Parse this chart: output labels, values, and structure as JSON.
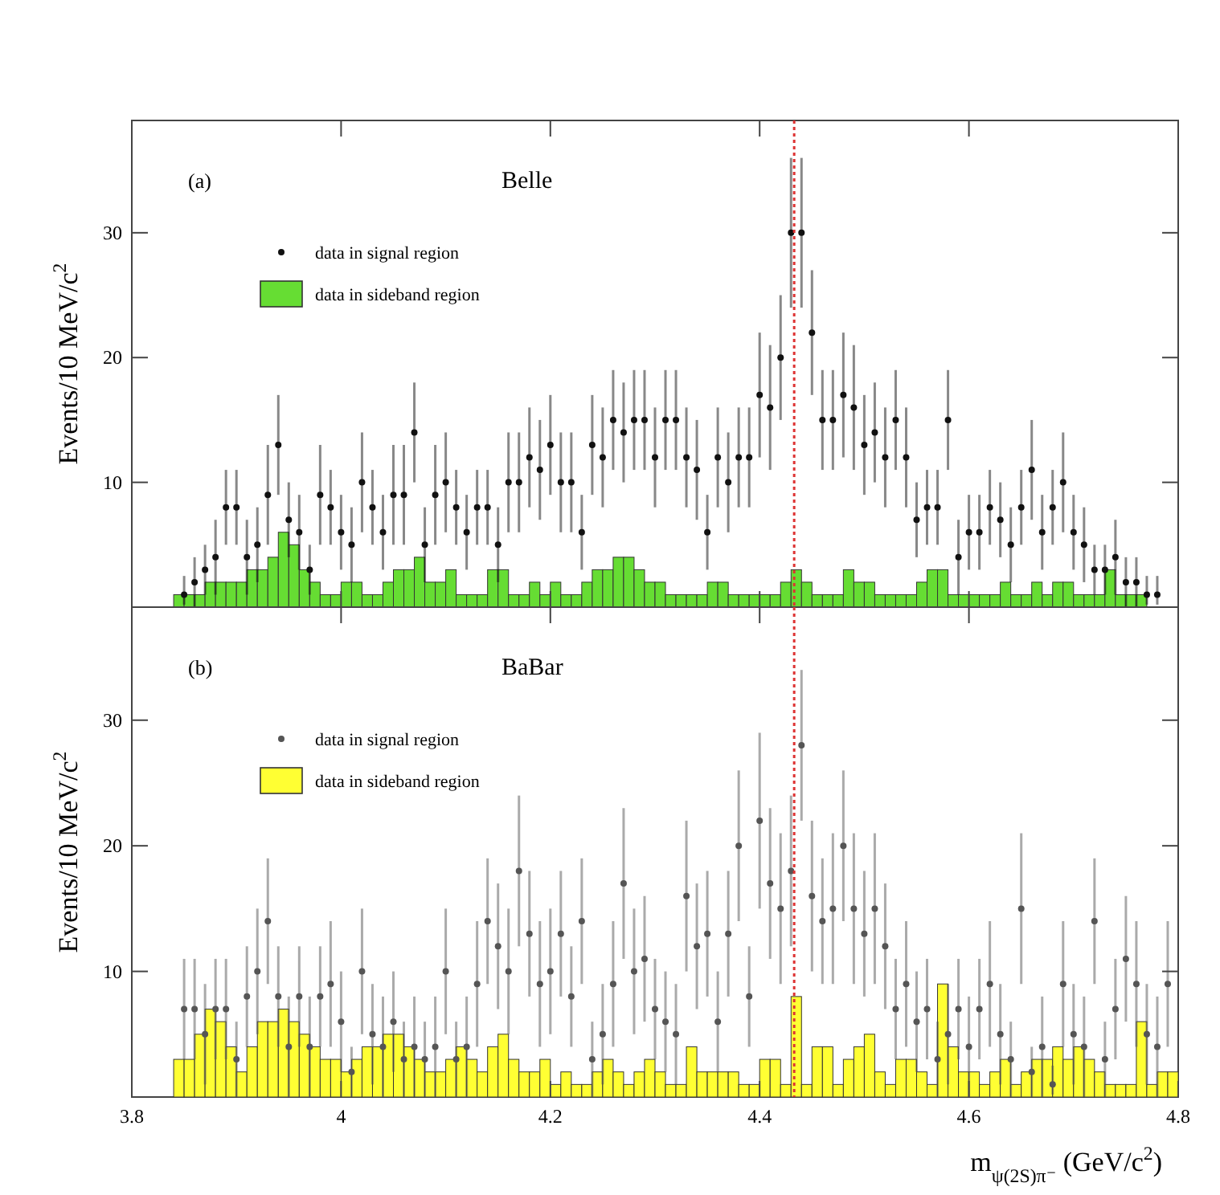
{
  "chart_data": [
    {
      "type": "scatter",
      "ylabel": "Events/10 MeV/c$^{2}$",
      "annotations": [
        "(a)",
        "Belle"
      ],
      "xlim": [
        3.8,
        4.8
      ],
      "xticks": [
        3.8,
        4,
        4.2,
        4.4,
        4.6,
        4.8
      ],
      "ylim": [
        0,
        39
      ],
      "yticks": [
        10,
        20,
        30
      ],
      "tick_labels": "y",
      "legend": "top left",
      "grid": false,
      "marker": "circle",
      "ref_lines": [
        {
          "axis": "x",
          "value": 4.433,
          "color": "#dd3333",
          "line_style": "dotted"
        }
      ],
      "series": [
        {
          "name": "data in signal region",
          "color": "#111111",
          "x": [
            3.85,
            3.86,
            3.87,
            3.88,
            3.89,
            3.9,
            3.91,
            3.92,
            3.93,
            3.94,
            3.95,
            3.96,
            3.97,
            3.98,
            3.99,
            4.0,
            4.01,
            4.02,
            4.03,
            4.04,
            4.05,
            4.06,
            4.07,
            4.08,
            4.09,
            4.1,
            4.11,
            4.12,
            4.13,
            4.14,
            4.15,
            4.16,
            4.17,
            4.18,
            4.19,
            4.2,
            4.21,
            4.22,
            4.23,
            4.24,
            4.25,
            4.26,
            4.27,
            4.28,
            4.29,
            4.3,
            4.31,
            4.32,
            4.33,
            4.34,
            4.35,
            4.36,
            4.37,
            4.38,
            4.39,
            4.4,
            4.41,
            4.42,
            4.43,
            4.44,
            4.45,
            4.46,
            4.47,
            4.48,
            4.49,
            4.5,
            4.51,
            4.52,
            4.53,
            4.54,
            4.55,
            4.56,
            4.57,
            4.58,
            4.59,
            4.6,
            4.61,
            4.62,
            4.63,
            4.64,
            4.65,
            4.66,
            4.67,
            4.68,
            4.69,
            4.7,
            4.71,
            4.72,
            4.73,
            4.74,
            4.75,
            4.76,
            4.77,
            4.78
          ],
          "values": [
            1,
            2,
            3,
            4,
            8,
            8,
            4,
            5,
            9,
            13,
            7,
            6,
            3,
            9,
            8,
            6,
            5,
            10,
            8,
            6,
            9,
            9,
            14,
            5,
            9,
            10,
            8,
            6,
            8,
            8,
            5,
            10,
            10,
            12,
            11,
            13,
            10,
            10,
            6,
            13,
            12,
            15,
            14,
            15,
            15,
            12,
            15,
            15,
            12,
            11,
            6,
            12,
            10,
            12,
            12,
            17,
            16,
            20,
            30,
            30,
            22,
            15,
            15,
            17,
            16,
            13,
            14,
            12,
            15,
            12,
            7,
            8,
            8,
            15,
            4,
            6,
            6,
            8,
            7,
            5,
            8,
            11,
            6,
            8,
            10,
            6,
            5,
            3,
            3,
            4,
            2,
            2,
            1,
            1
          ],
          "errors": [
            [
              0.2,
              2.5
            ],
            2,
            2,
            3,
            3,
            3,
            3,
            3,
            4,
            4,
            3,
            3,
            2,
            4,
            3,
            3,
            3,
            4,
            3,
            3,
            4,
            4,
            4,
            3,
            4,
            4,
            3,
            3,
            3,
            3,
            3,
            4,
            4,
            4,
            4,
            4,
            4,
            4,
            3,
            4,
            4,
            4,
            4,
            4,
            4,
            4,
            4,
            4,
            4,
            4,
            3,
            4,
            4,
            4,
            4,
            5,
            5,
            5,
            6,
            6,
            5,
            4,
            4,
            5,
            5,
            4,
            4,
            4,
            4,
            4,
            3,
            3,
            3,
            4,
            3,
            3,
            3,
            3,
            3,
            3,
            3,
            4,
            3,
            3,
            4,
            3,
            3,
            2,
            2,
            3,
            2,
            2,
            [
              0.2,
              2.5
            ],
            [
              0.2,
              2.5
            ]
          ]
        },
        {
          "name": "data in sideband region",
          "type": "histogram",
          "color": "#66dd33",
          "bins": [
            3.84,
            3.85,
            3.86,
            3.87,
            3.88,
            3.89,
            3.9,
            3.91,
            3.92,
            3.93,
            3.94,
            3.95,
            3.96,
            3.97,
            3.98,
            3.99,
            4.0,
            4.01,
            4.02,
            4.03,
            4.04,
            4.05,
            4.06,
            4.07,
            4.08,
            4.09,
            4.1,
            4.11,
            4.12,
            4.13,
            4.14,
            4.15,
            4.16,
            4.17,
            4.18,
            4.19,
            4.2,
            4.21,
            4.22,
            4.23,
            4.24,
            4.25,
            4.26,
            4.27,
            4.28,
            4.29,
            4.3,
            4.31,
            4.32,
            4.33,
            4.34,
            4.35,
            4.36,
            4.37,
            4.38,
            4.39,
            4.4,
            4.41,
            4.42,
            4.43,
            4.44,
            4.45,
            4.46,
            4.47,
            4.48,
            4.49,
            4.5,
            4.51,
            4.52,
            4.53,
            4.54,
            4.55,
            4.56,
            4.57,
            4.58,
            4.59,
            4.6,
            4.61,
            4.62,
            4.63,
            4.64,
            4.65,
            4.66,
            4.67,
            4.68,
            4.69,
            4.7,
            4.71,
            4.72,
            4.73,
            4.74,
            4.75,
            4.76,
            4.77,
            4.78
          ],
          "values": [
            1,
            1,
            1,
            2,
            2,
            2,
            2,
            3,
            3,
            4,
            6,
            5,
            3,
            2,
            1,
            1,
            2,
            2,
            1,
            1,
            2,
            3,
            3,
            4,
            2,
            2,
            3,
            1,
            1,
            1,
            3,
            3,
            1,
            1,
            2,
            1,
            2,
            1,
            1,
            2,
            3,
            3,
            4,
            4,
            3,
            2,
            2,
            1,
            1,
            1,
            1,
            2,
            2,
            1,
            1,
            1,
            1,
            1,
            2,
            3,
            2,
            1,
            1,
            1,
            3,
            2,
            2,
            1,
            1,
            1,
            1,
            2,
            3,
            3,
            1,
            1,
            1,
            1,
            1,
            2,
            1,
            1,
            2,
            1,
            2,
            2,
            1,
            1,
            1,
            3,
            1,
            1,
            1,
            0
          ]
        }
      ]
    },
    {
      "type": "scatter",
      "ylabel": "Events/10 MeV/c$^{2}$",
      "xlabel": "m$_{ψ(2S)π⁻}$ (GeV/c$^{2}$)",
      "annotations": [
        "(b)",
        "BaBar"
      ],
      "xlim": [
        3.8,
        4.8
      ],
      "xticks": [
        3.8,
        4,
        4.2,
        4.4,
        4.6,
        4.8
      ],
      "ylim": [
        0,
        39
      ],
      "yticks": [
        10,
        20,
        30
      ],
      "legend": "top left",
      "grid": false,
      "marker": "circle",
      "ref_lines": [
        {
          "axis": "x",
          "value": 4.433,
          "color": "#dd3333",
          "line_style": "dotted"
        }
      ],
      "series": [
        {
          "name": "data in signal region",
          "color": "#555555",
          "x": [
            3.85,
            3.86,
            3.87,
            3.88,
            3.89,
            3.9,
            3.91,
            3.92,
            3.93,
            3.94,
            3.95,
            3.96,
            3.97,
            3.98,
            3.99,
            4.0,
            4.01,
            4.02,
            4.03,
            4.04,
            4.05,
            4.06,
            4.07,
            4.08,
            4.09,
            4.1,
            4.11,
            4.12,
            4.13,
            4.14,
            4.15,
            4.16,
            4.17,
            4.18,
            4.19,
            4.2,
            4.21,
            4.22,
            4.23,
            4.24,
            4.25,
            4.26,
            4.27,
            4.28,
            4.29,
            4.3,
            4.31,
            4.32,
            4.33,
            4.34,
            4.35,
            4.36,
            4.37,
            4.38,
            4.39,
            4.4,
            4.41,
            4.42,
            4.43,
            4.44,
            4.45,
            4.46,
            4.47,
            4.48,
            4.49,
            4.5,
            4.51,
            4.52,
            4.53,
            4.54,
            4.55,
            4.56,
            4.57,
            4.58,
            4.59,
            4.6,
            4.61,
            4.62,
            4.63,
            4.64,
            4.65,
            4.66,
            4.67,
            4.68,
            4.69,
            4.7,
            4.71,
            4.72,
            4.73,
            4.74,
            4.75,
            4.76,
            4.77,
            4.78,
            4.79
          ],
          "values": [
            7,
            7,
            5,
            7,
            7,
            3,
            8,
            10,
            14,
            8,
            4,
            8,
            4,
            8,
            9,
            6,
            2,
            10,
            5,
            4,
            6,
            3,
            4,
            3,
            4,
            10,
            3,
            4,
            9,
            14,
            12,
            10,
            18,
            13,
            9,
            10,
            13,
            8,
            14,
            3,
            5,
            9,
            17,
            10,
            11,
            7,
            6,
            5,
            16,
            12,
            13,
            6,
            13,
            20,
            8,
            22,
            17,
            15,
            18,
            28,
            16,
            14,
            15,
            20,
            15,
            13,
            15,
            12,
            7,
            9,
            6,
            7,
            3,
            5,
            7,
            4,
            7,
            9,
            5,
            3,
            15,
            2,
            4,
            1,
            9,
            5,
            4,
            14,
            3,
            7,
            11,
            9,
            5,
            4,
            9
          ],
          "errors": [
            4,
            4,
            4,
            4,
            4,
            3,
            4,
            5,
            5,
            4,
            4,
            4,
            4,
            4,
            5,
            4,
            2,
            5,
            4,
            4,
            4,
            3,
            4,
            3,
            4,
            5,
            3,
            4,
            5,
            5,
            5,
            5,
            6,
            5,
            5,
            5,
            5,
            4,
            5,
            3,
            4,
            5,
            6,
            5,
            5,
            4,
            4,
            4,
            6,
            5,
            5,
            4,
            5,
            6,
            4,
            7,
            6,
            6,
            6,
            6,
            6,
            5,
            6,
            6,
            6,
            5,
            6,
            5,
            4,
            5,
            4,
            4,
            3,
            4,
            4,
            4,
            4,
            5,
            4,
            3,
            6,
            2,
            4,
            [
              0.2,
              2.5
            ],
            5,
            4,
            4,
            5,
            3,
            4,
            5,
            5,
            4,
            4,
            5
          ]
        },
        {
          "name": "data in sideband region",
          "type": "histogram",
          "color": "#ffff33",
          "bins": [
            3.84,
            3.85,
            3.86,
            3.87,
            3.88,
            3.89,
            3.9,
            3.91,
            3.92,
            3.93,
            3.94,
            3.95,
            3.96,
            3.97,
            3.98,
            3.99,
            4.0,
            4.01,
            4.02,
            4.03,
            4.04,
            4.05,
            4.06,
            4.07,
            4.08,
            4.09,
            4.1,
            4.11,
            4.12,
            4.13,
            4.14,
            4.15,
            4.16,
            4.17,
            4.18,
            4.19,
            4.2,
            4.21,
            4.22,
            4.23,
            4.24,
            4.25,
            4.26,
            4.27,
            4.28,
            4.29,
            4.3,
            4.31,
            4.32,
            4.33,
            4.34,
            4.35,
            4.36,
            4.37,
            4.38,
            4.39,
            4.4,
            4.41,
            4.42,
            4.43,
            4.44,
            4.45,
            4.46,
            4.47,
            4.48,
            4.49,
            4.5,
            4.51,
            4.52,
            4.53,
            4.54,
            4.55,
            4.56,
            4.57,
            4.58,
            4.59,
            4.6,
            4.61,
            4.62,
            4.63,
            4.64,
            4.65,
            4.66,
            4.67,
            4.68,
            4.69,
            4.7,
            4.71,
            4.72,
            4.73,
            4.74,
            4.75,
            4.76,
            4.77,
            4.78,
            4.79,
            4.8
          ],
          "values": [
            3,
            3,
            5,
            7,
            6,
            4,
            2,
            4,
            6,
            6,
            7,
            6,
            5,
            4,
            3,
            3,
            2,
            3,
            4,
            4,
            5,
            5,
            4,
            3,
            2,
            2,
            3,
            4,
            3,
            2,
            4,
            5,
            3,
            2,
            2,
            3,
            1,
            2,
            1,
            1,
            2,
            3,
            2,
            1,
            2,
            3,
            2,
            1,
            1,
            4,
            2,
            2,
            2,
            2,
            1,
            1,
            3,
            3,
            1,
            8,
            1,
            4,
            4,
            1,
            3,
            4,
            5,
            2,
            1,
            3,
            3,
            2,
            1,
            9,
            4,
            2,
            2,
            1,
            2,
            3,
            1,
            2,
            3,
            3,
            4,
            3,
            4,
            3,
            2,
            1,
            1,
            1,
            6,
            1,
            2,
            2
          ]
        }
      ]
    }
  ]
}
